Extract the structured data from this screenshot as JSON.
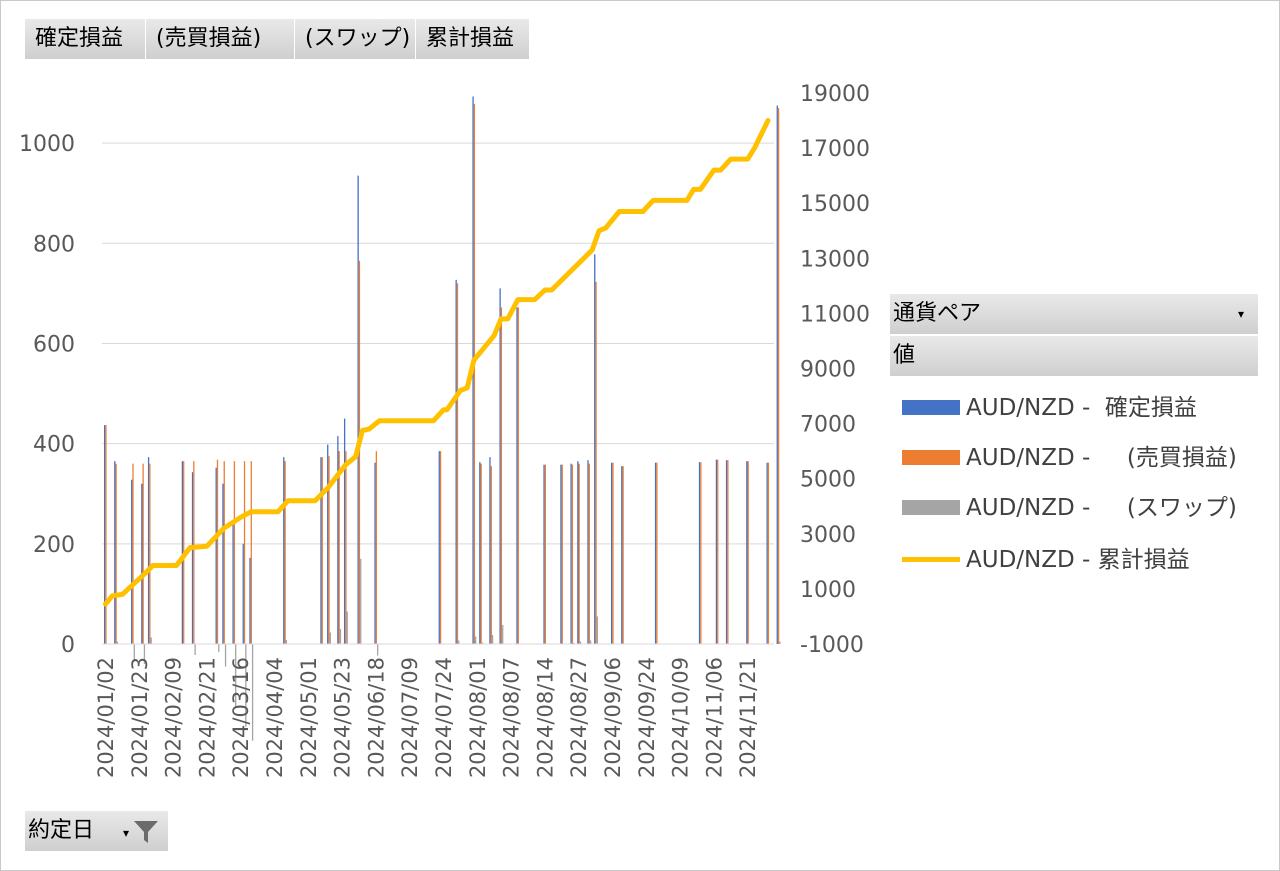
{
  "field_buttons": [
    "確定損益",
    "(売買損益)",
    "(スワップ)",
    "累計損益"
  ],
  "legend": {
    "header": "通貨ペア",
    "sub": "値",
    "items": [
      {
        "label": "AUD/NZD -  確定損益",
        "color": "#4472c4",
        "kind": "bar"
      },
      {
        "label": "AUD/NZD -     (売買損益)",
        "color": "#ed7d31",
        "kind": "bar"
      },
      {
        "label": "AUD/NZD -     (スワップ)",
        "color": "#a5a5a5",
        "kind": "bar"
      },
      {
        "label": "AUD/NZD - 累計損益",
        "color": "#ffc000",
        "kind": "line"
      }
    ]
  },
  "filter_button": "約定日",
  "chart_data": {
    "type": "bar",
    "title": "",
    "xlabel": "",
    "ylabel": "",
    "ylim": [
      0,
      1100
    ],
    "y2lim": [
      -1000,
      19000
    ],
    "y_ticks": [
      0,
      200,
      400,
      600,
      800,
      1000
    ],
    "y2_ticks": [
      -1000,
      1000,
      3000,
      5000,
      7000,
      9000,
      11000,
      13000,
      15000,
      17000,
      19000
    ],
    "tick_labels": [
      "2024/01/02",
      "2024/01/23",
      "2024/02/09",
      "2024/02/21",
      "2024/03/16",
      "2024/04/04",
      "2024/05/01",
      "2024/05/23",
      "2024/06/18",
      "2024/07/09",
      "2024/07/24",
      "2024/08/01",
      "2024/08/07",
      "2024/08/14",
      "2024/08/27",
      "2024/09/06",
      "2024/09/24",
      "2024/10/09",
      "2024/11/06",
      "2024/11/21"
    ],
    "tick_positions": [
      0,
      10,
      20,
      30,
      40,
      50,
      60,
      70,
      80,
      90,
      100,
      110,
      120,
      130,
      140,
      150,
      160,
      170,
      180,
      190
    ],
    "category_count": 198,
    "gridlines": true,
    "legend_position": "right",
    "bars": [
      [
        0,
        437,
        437,
        0
      ],
      [
        3,
        365,
        360,
        5
      ],
      [
        8,
        328,
        360,
        -32
      ],
      [
        11,
        320,
        360,
        -40
      ],
      [
        13,
        373,
        360,
        13
      ],
      [
        23,
        365,
        365,
        0
      ],
      [
        26,
        343,
        365,
        -22
      ],
      [
        33,
        352,
        368,
        -16
      ],
      [
        35,
        320,
        365,
        -45
      ],
      [
        38,
        240,
        365,
        -125
      ],
      [
        41,
        200,
        365,
        -165
      ],
      [
        43,
        172,
        365,
        -193
      ],
      [
        53,
        373,
        365,
        8
      ],
      [
        64,
        373,
        373,
        0
      ],
      [
        66,
        398,
        375,
        23
      ],
      [
        69,
        415,
        385,
        30
      ],
      [
        71,
        450,
        385,
        65
      ],
      [
        75,
        935,
        765,
        170
      ],
      [
        80,
        362,
        385,
        -23
      ],
      [
        99,
        385,
        385,
        0
      ],
      [
        104,
        727,
        720,
        7
      ],
      [
        109,
        1093,
        1078,
        15
      ],
      [
        111,
        363,
        360,
        3
      ],
      [
        114,
        373,
        355,
        18
      ],
      [
        117,
        710,
        672,
        38
      ],
      [
        122,
        672,
        672,
        0
      ],
      [
        130,
        358,
        358,
        0
      ],
      [
        135,
        358,
        358,
        0
      ],
      [
        138,
        360,
        358,
        2
      ],
      [
        140,
        365,
        360,
        5
      ],
      [
        143,
        367,
        360,
        7
      ],
      [
        145,
        778,
        723,
        55
      ],
      [
        150,
        362,
        362,
        0
      ],
      [
        153,
        355,
        355,
        0
      ],
      [
        163,
        362,
        362,
        0
      ],
      [
        176,
        363,
        363,
        0
      ],
      [
        181,
        368,
        368,
        0
      ],
      [
        184,
        367,
        367,
        0
      ],
      [
        190,
        365,
        365,
        0
      ],
      [
        196,
        362,
        362,
        0
      ],
      [
        199,
        1075,
        1070,
        5
      ]
    ],
    "cumulative": [
      [
        0,
        450
      ],
      [
        2,
        750
      ],
      [
        5,
        800
      ],
      [
        12,
        1600
      ],
      [
        14,
        1850
      ],
      [
        21,
        1850
      ],
      [
        25,
        2500
      ],
      [
        30,
        2550
      ],
      [
        35,
        3200
      ],
      [
        40,
        3600
      ],
      [
        43,
        3800
      ],
      [
        51,
        3800
      ],
      [
        54,
        4200
      ],
      [
        62,
        4200
      ],
      [
        66,
        4700
      ],
      [
        71,
        5500
      ],
      [
        74,
        5800
      ],
      [
        76,
        6750
      ],
      [
        78,
        6800
      ],
      [
        81,
        7100
      ],
      [
        97,
        7100
      ],
      [
        100,
        7500
      ],
      [
        101,
        7500
      ],
      [
        105,
        8200
      ],
      [
        107,
        8300
      ],
      [
        109,
        9300
      ],
      [
        115,
        10200
      ],
      [
        117,
        10800
      ],
      [
        119,
        10800
      ],
      [
        122,
        11500
      ],
      [
        127,
        11500
      ],
      [
        130,
        11850
      ],
      [
        132,
        11850
      ],
      [
        144,
        13300
      ],
      [
        146,
        14000
      ],
      [
        148,
        14100
      ],
      [
        152,
        14700
      ],
      [
        159,
        14700
      ],
      [
        162,
        15100
      ],
      [
        172,
        15100
      ],
      [
        174,
        15500
      ],
      [
        176,
        15500
      ],
      [
        180,
        16200
      ],
      [
        182,
        16200
      ],
      [
        185,
        16600
      ],
      [
        190,
        16600
      ],
      [
        192,
        17000
      ],
      [
        196,
        18000
      ]
    ]
  }
}
